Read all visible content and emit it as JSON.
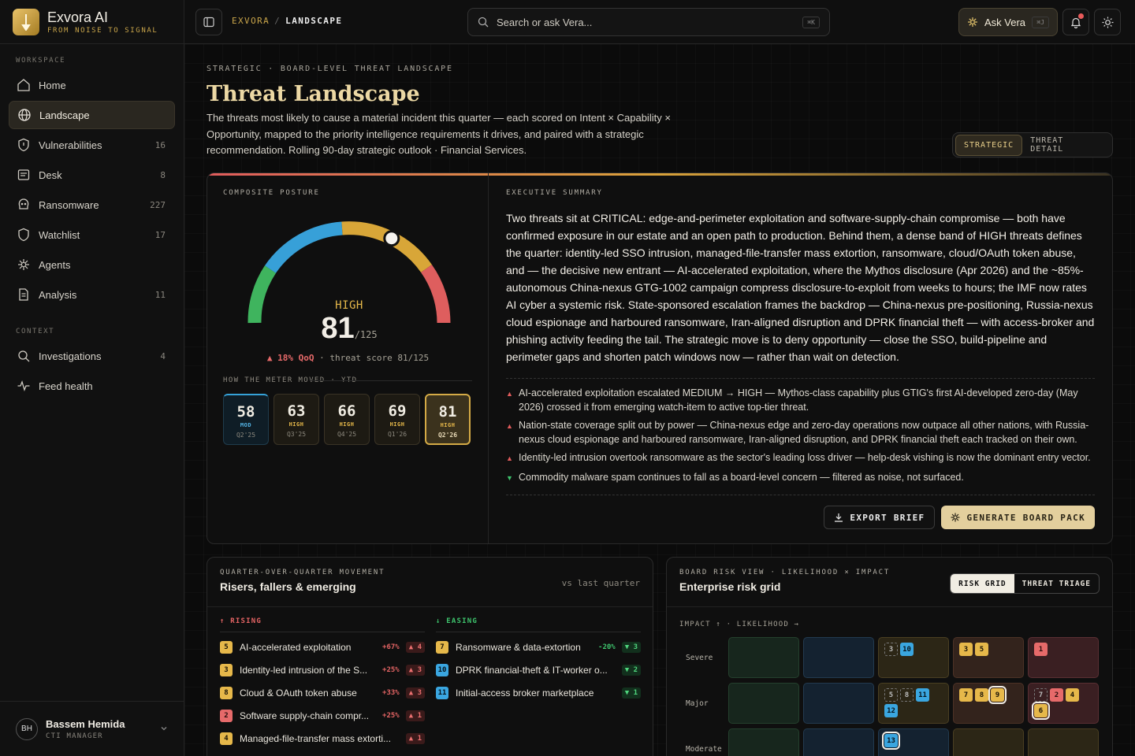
{
  "brand": {
    "name": "Exvora AI",
    "tagline": "FROM NOISE TO SIGNAL"
  },
  "sidebar": {
    "workspace_label": "WORKSPACE",
    "context_label": "CONTEXT",
    "items": [
      {
        "label": "Home",
        "count": "",
        "icon": "home-icon"
      },
      {
        "label": "Landscape",
        "count": "",
        "icon": "globe-icon",
        "active": true
      },
      {
        "label": "Vulnerabilities",
        "count": "16",
        "icon": "shield-icon"
      },
      {
        "label": "Desk",
        "count": "8",
        "icon": "inbox-icon"
      },
      {
        "label": "Ransomware",
        "count": "227",
        "icon": "skull-icon"
      },
      {
        "label": "Watchlist",
        "count": "17",
        "icon": "shield-outline-icon"
      },
      {
        "label": "Agents",
        "count": "",
        "icon": "sparkle-icon"
      },
      {
        "label": "Analysis",
        "count": "11",
        "icon": "document-icon"
      }
    ],
    "context_items": [
      {
        "label": "Investigations",
        "count": "4",
        "icon": "search-icon"
      },
      {
        "label": "Feed health",
        "count": "",
        "icon": "pulse-icon"
      }
    ],
    "user": {
      "initials": "BH",
      "name": "Bassem Hemida",
      "role": "CTI MANAGER"
    }
  },
  "topbar": {
    "crumb_root": "EXVORA",
    "crumb_sep": "/",
    "crumb_current": "LANDSCAPE",
    "search_placeholder": "Search or ask Vera...",
    "search_shortcut": "⌘K",
    "ask_label": "Ask Vera",
    "ask_shortcut": "⌘J"
  },
  "header": {
    "eyebrow": "STRATEGIC · BOARD-LEVEL THREAT LANDSCAPE",
    "title": "Threat Landscape",
    "description": "The threats most likely to cause a material incident this quarter — each scored on Intent × Capability × Opportunity, mapped to the priority intelligence requirements it drives, and paired with a strategic recommendation. Rolling 90-day strategic outlook · Financial Services.",
    "view_toggle": {
      "options": [
        "STRATEGIC",
        "THREAT DETAIL"
      ],
      "selected": "STRATEGIC"
    }
  },
  "posture": {
    "label": "COMPOSITE POSTURE",
    "level": "HIGH",
    "score": "81",
    "max": "/125",
    "score_value": 81,
    "score_max": 125,
    "qoq_delta": "▲ 18% QoQ",
    "qoq_text": "· threat score 81/125",
    "meter_label": "HOW THE METER MOVED · YTD",
    "history": [
      {
        "value": "58",
        "level": "MOD",
        "quarter": "Q2'25",
        "kind": "mod"
      },
      {
        "value": "63",
        "level": "HIGH",
        "quarter": "Q3'25",
        "kind": "high"
      },
      {
        "value": "66",
        "level": "HIGH",
        "quarter": "Q4'25",
        "kind": "high"
      },
      {
        "value": "69",
        "level": "HIGH",
        "quarter": "Q1'26",
        "kind": "high"
      },
      {
        "value": "81",
        "level": "HIGH",
        "quarter": "Q2'26",
        "kind": "cur"
      }
    ]
  },
  "summary": {
    "label": "EXECUTIVE SUMMARY",
    "text": "Two threats sit at CRITICAL: edge-and-perimeter exploitation and software-supply-chain compromise — both have confirmed exposure in our estate and an open path to production. Behind them, a dense band of HIGH threats defines the quarter: identity-led SSO intrusion, managed-file-transfer mass extortion, ransomware, cloud/OAuth token abuse, and — the decisive new entrant — AI-accelerated exploitation, where the Mythos disclosure (Apr 2026) and the ~85%-autonomous China-nexus GTG-1002 campaign compress disclosure-to-exploit from weeks to hours; the IMF now rates AI cyber a systemic risk. State-sponsored escalation frames the backdrop — China-nexus pre-positioning, Russia-nexus cloud espionage and harboured ransomware, Iran-aligned disruption and DPRK financial theft — with access-broker and phishing activity feeding the tail. The strategic move is to deny opportunity — close the SSO, build-pipeline and perimeter gaps and shorten patch windows now — rather than wait on detection.",
    "bullets": [
      {
        "dir": "up",
        "text": "AI-accelerated exploitation escalated MEDIUM → HIGH — Mythos-class capability plus GTIG's first AI-developed zero-day (May 2026) crossed it from emerging watch-item to active top-tier threat."
      },
      {
        "dir": "up",
        "text": "Nation-state coverage split out by power — China-nexus edge and zero-day operations now outpace all other nations, with Russia-nexus cloud espionage and harboured ransomware, Iran-aligned disruption, and DPRK financial theft each tracked on their own."
      },
      {
        "dir": "up",
        "text": "Identity-led intrusion overtook ransomware as the sector's leading loss driver — help-desk vishing is now the dominant entry vector."
      },
      {
        "dir": "down",
        "text": "Commodity malware spam continues to fall as a board-level concern — filtered as noise, not surfaced."
      }
    ],
    "export_label": "EXPORT BRIEF",
    "generate_label": "GENERATE BOARD PACK"
  },
  "movement": {
    "label": "QUARTER-OVER-QUARTER MOVEMENT",
    "title": "Risers, fallers & emerging",
    "vs": "vs last quarter",
    "rising_label": "RISING",
    "easing_label": "EASING",
    "rising": [
      {
        "id": "5",
        "color": "gold",
        "name": "AI-accelerated exploitation",
        "pct": "+67%",
        "chip": "▲ 4"
      },
      {
        "id": "3",
        "color": "gold",
        "name": "Identity-led intrusion of the S...",
        "pct": "+25%",
        "chip": "▲ 3"
      },
      {
        "id": "8",
        "color": "gold",
        "name": "Cloud & OAuth token abuse",
        "pct": "+33%",
        "chip": "▲ 3"
      },
      {
        "id": "2",
        "color": "red",
        "name": "Software supply-chain compr...",
        "pct": "+25%",
        "chip": "▲ 1"
      },
      {
        "id": "4",
        "color": "gold",
        "name": "Managed-file-transfer mass extorti...",
        "pct": "",
        "chip": "▲ 1"
      }
    ],
    "easing": [
      {
        "id": "7",
        "color": "gold",
        "name": "Ransomware & data-extortion",
        "pct": "-20%",
        "chip": "▼ 3"
      },
      {
        "id": "10",
        "color": "blue",
        "name": "DPRK financial-theft & IT-worker o...",
        "pct": "",
        "chip": "▼ 2"
      },
      {
        "id": "11",
        "color": "blue",
        "name": "Initial-access broker marketplace",
        "pct": "",
        "chip": "▼ 1"
      }
    ]
  },
  "risk": {
    "label": "BOARD RISK VIEW · LIKELIHOOD × IMPACT",
    "title": "Enterprise risk grid",
    "tabs": [
      "RISK GRID",
      "THREAT TRIAGE"
    ],
    "selected_tab": "RISK GRID",
    "axis": "IMPACT ↑ · LIKELIHOOD →",
    "rows": [
      {
        "label": "Severe",
        "cells": [
          {
            "tone": "green",
            "tags": []
          },
          {
            "tone": "blue",
            "tags": []
          },
          {
            "tone": "amber",
            "tags": [
              {
                "id": "3",
                "s": "dash"
              },
              {
                "id": "10",
                "s": "blue"
              }
            ]
          },
          {
            "tone": "rust",
            "tags": [
              {
                "id": "3",
                "s": "gold"
              },
              {
                "id": "5",
                "s": "gold"
              }
            ]
          },
          {
            "tone": "red",
            "tags": [
              {
                "id": "1",
                "s": "red"
              }
            ]
          }
        ]
      },
      {
        "label": "Major",
        "cells": [
          {
            "tone": "green",
            "tags": []
          },
          {
            "tone": "blue",
            "tags": []
          },
          {
            "tone": "amber",
            "tags": [
              {
                "id": "5",
                "s": "dash"
              },
              {
                "id": "8",
                "s": "dash"
              },
              {
                "id": "11",
                "s": "blue"
              },
              {
                "id": "12",
                "s": "blue"
              }
            ]
          },
          {
            "tone": "rust",
            "tags": [
              {
                "id": "7",
                "s": "gold"
              },
              {
                "id": "8",
                "s": "gold"
              },
              {
                "id": "9",
                "s": "gold ring"
              }
            ]
          },
          {
            "tone": "red",
            "tags": [
              {
                "id": "7",
                "s": "dash"
              },
              {
                "id": "2",
                "s": "red"
              },
              {
                "id": "4",
                "s": "gold"
              },
              {
                "id": "6",
                "s": "gold ring"
              }
            ]
          }
        ]
      },
      {
        "label": "Moderate",
        "cells": [
          {
            "tone": "green",
            "tags": []
          },
          {
            "tone": "blue",
            "tags": []
          },
          {
            "tone": "blue",
            "tags": [
              {
                "id": "13",
                "s": "blue ring"
              }
            ]
          },
          {
            "tone": "amber",
            "tags": []
          },
          {
            "tone": "amber",
            "tags": []
          }
        ]
      }
    ]
  },
  "colors": {
    "accent_gold": "#e6b84a",
    "critical_red": "#e66a6a",
    "moderate_blue": "#3aa6e0",
    "low_green": "#3ec46d"
  }
}
